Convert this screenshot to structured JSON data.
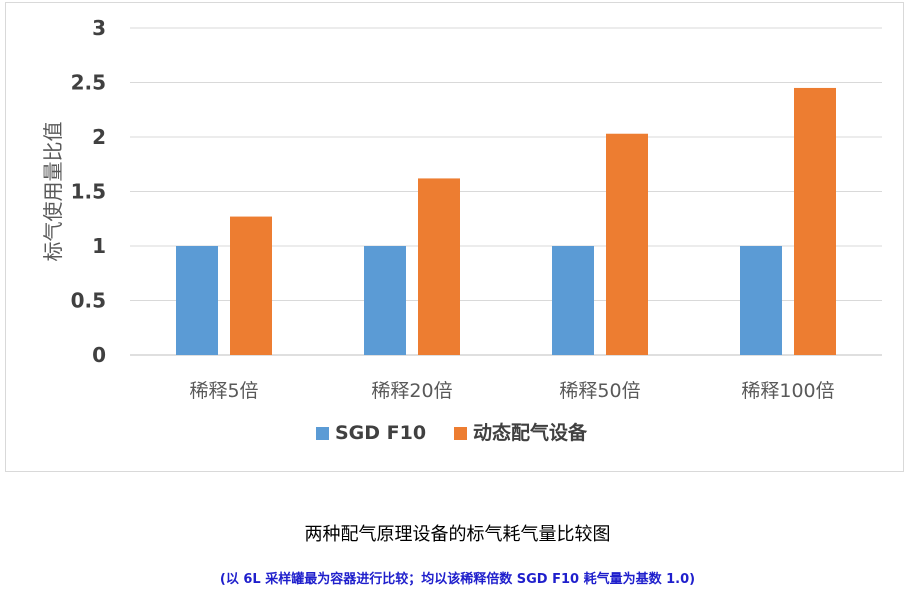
{
  "chart_data": {
    "type": "bar",
    "ylabel": "标气使用量比值",
    "ylim": [
      0,
      3
    ],
    "yticks": [
      "0",
      "0.5",
      "1",
      "1.5",
      "2",
      "2.5",
      "3"
    ],
    "categories": [
      "稀释5倍",
      "稀释20倍",
      "稀释50倍",
      "稀释100倍"
    ],
    "series": [
      {
        "name": "SGD F10",
        "color": "#5b9bd5",
        "values": [
          1,
          1,
          1,
          1
        ]
      },
      {
        "name": "动态配气设备",
        "color": "#ed7d31",
        "values": [
          1.27,
          1.62,
          2.03,
          2.45
        ]
      }
    ],
    "grid": true,
    "legend": "bottom"
  },
  "captions": {
    "main": "两种配气原理设备的标气耗气量比较图",
    "note": "(以 6L 采样罐最为容器进行比较；均以该稀释倍数 SGD F10 耗气量为基数 1.0)"
  }
}
